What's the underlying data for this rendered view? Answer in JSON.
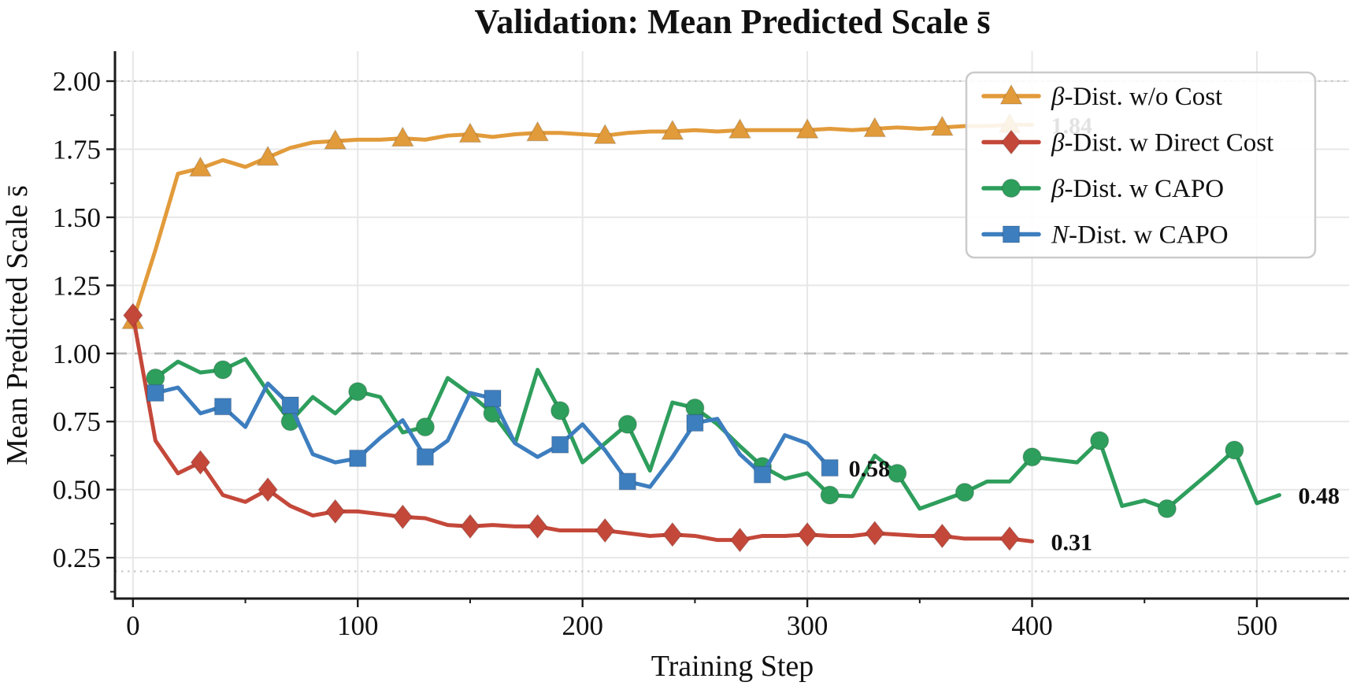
{
  "chart_data": {
    "type": "line",
    "title": "Validation: Mean Predicted Scale s̄",
    "xlabel": "Training Step",
    "ylabel": "Mean Predicted Scale s̄",
    "xlim": [
      -8,
      541
    ],
    "ylim": [
      0.1,
      2.11
    ],
    "xticks": [
      0,
      100,
      200,
      300,
      400,
      500
    ],
    "xminorticks": [
      50,
      150,
      250,
      350,
      450
    ],
    "yticks": [
      0.25,
      0.5,
      0.75,
      1.0,
      1.25,
      1.5,
      1.75,
      2.0
    ],
    "yminorticks": [
      0.125,
      0.375,
      0.625,
      0.875,
      1.125,
      1.375,
      1.625,
      1.875
    ],
    "grid": true,
    "grid_color": "#e7e7e7",
    "reference_lines": [
      {
        "y": 1.0,
        "style": "dashed",
        "color": "#b9b9b9"
      },
      {
        "y": 2.0,
        "style": "dotted",
        "color": "#c6c6c6"
      },
      {
        "y": 0.2,
        "style": "dotted",
        "color": "#c6c6c6"
      }
    ],
    "legend_position": "upper right",
    "series": [
      {
        "name": "β-Dist. w/o Cost",
        "slug": "beta-dist-wo-cost",
        "color": "#E29B3B",
        "marker": "triangle",
        "marker_interval": 30,
        "end_label": "1.84",
        "points": [
          [
            0,
            1.12
          ],
          [
            10,
            1.38
          ],
          [
            20,
            1.66
          ],
          [
            30,
            1.68
          ],
          [
            40,
            1.71
          ],
          [
            50,
            1.685
          ],
          [
            60,
            1.72
          ],
          [
            70,
            1.755
          ],
          [
            80,
            1.775
          ],
          [
            90,
            1.78
          ],
          [
            100,
            1.785
          ],
          [
            110,
            1.785
          ],
          [
            120,
            1.79
          ],
          [
            130,
            1.785
          ],
          [
            140,
            1.8
          ],
          [
            150,
            1.805
          ],
          [
            160,
            1.795
          ],
          [
            170,
            1.805
          ],
          [
            180,
            1.81
          ],
          [
            190,
            1.81
          ],
          [
            200,
            1.805
          ],
          [
            210,
            1.8
          ],
          [
            220,
            1.81
          ],
          [
            230,
            1.815
          ],
          [
            240,
            1.815
          ],
          [
            250,
            1.82
          ],
          [
            260,
            1.815
          ],
          [
            270,
            1.82
          ],
          [
            280,
            1.82
          ],
          [
            290,
            1.82
          ],
          [
            300,
            1.82
          ],
          [
            310,
            1.825
          ],
          [
            320,
            1.82
          ],
          [
            330,
            1.825
          ],
          [
            340,
            1.83
          ],
          [
            350,
            1.825
          ],
          [
            360,
            1.83
          ],
          [
            370,
            1.835
          ],
          [
            380,
            1.835
          ],
          [
            390,
            1.84
          ],
          [
            400,
            1.84
          ]
        ]
      },
      {
        "name": "β-Dist. w Direct Cost",
        "slug": "beta-dist-w-direct-cost",
        "color": "#C4483A",
        "marker": "diamond",
        "marker_interval": 30,
        "end_label": "0.31",
        "points": [
          [
            0,
            1.14
          ],
          [
            10,
            0.68
          ],
          [
            20,
            0.56
          ],
          [
            30,
            0.6
          ],
          [
            40,
            0.48
          ],
          [
            50,
            0.455
          ],
          [
            60,
            0.5
          ],
          [
            70,
            0.44
          ],
          [
            80,
            0.405
          ],
          [
            90,
            0.42
          ],
          [
            100,
            0.42
          ],
          [
            110,
            0.41
          ],
          [
            120,
            0.4
          ],
          [
            130,
            0.395
          ],
          [
            140,
            0.37
          ],
          [
            150,
            0.365
          ],
          [
            160,
            0.37
          ],
          [
            170,
            0.365
          ],
          [
            180,
            0.365
          ],
          [
            190,
            0.35
          ],
          [
            200,
            0.35
          ],
          [
            210,
            0.35
          ],
          [
            220,
            0.34
          ],
          [
            230,
            0.33
          ],
          [
            240,
            0.335
          ],
          [
            250,
            0.33
          ],
          [
            260,
            0.315
          ],
          [
            270,
            0.315
          ],
          [
            280,
            0.33
          ],
          [
            290,
            0.33
          ],
          [
            300,
            0.335
          ],
          [
            310,
            0.33
          ],
          [
            320,
            0.33
          ],
          [
            330,
            0.34
          ],
          [
            340,
            0.335
          ],
          [
            350,
            0.33
          ],
          [
            360,
            0.33
          ],
          [
            370,
            0.32
          ],
          [
            380,
            0.32
          ],
          [
            390,
            0.32
          ],
          [
            400,
            0.31
          ]
        ]
      },
      {
        "name": "β-Dist. w CAPO",
        "slug": "beta-dist-w-capo",
        "color": "#2E9E5C",
        "marker": "circle",
        "marker_interval": 30,
        "end_label": "0.48",
        "points": [
          [
            10,
            0.91
          ],
          [
            20,
            0.97
          ],
          [
            30,
            0.93
          ],
          [
            40,
            0.94
          ],
          [
            50,
            0.98
          ],
          [
            60,
            0.86
          ],
          [
            70,
            0.75
          ],
          [
            80,
            0.84
          ],
          [
            90,
            0.78
          ],
          [
            100,
            0.86
          ],
          [
            110,
            0.84
          ],
          [
            120,
            0.71
          ],
          [
            130,
            0.73
          ],
          [
            140,
            0.91
          ],
          [
            150,
            0.85
          ],
          [
            160,
            0.78
          ],
          [
            170,
            0.67
          ],
          [
            180,
            0.94
          ],
          [
            190,
            0.79
          ],
          [
            200,
            0.6
          ],
          [
            210,
            0.67
          ],
          [
            220,
            0.74
          ],
          [
            230,
            0.57
          ],
          [
            240,
            0.82
          ],
          [
            250,
            0.8
          ],
          [
            260,
            0.74
          ],
          [
            270,
            0.66
          ],
          [
            280,
            0.585
          ],
          [
            290,
            0.54
          ],
          [
            300,
            0.56
          ],
          [
            310,
            0.48
          ],
          [
            320,
            0.475
          ],
          [
            330,
            0.625
          ],
          [
            340,
            0.56
          ],
          [
            350,
            0.43
          ],
          [
            360,
            0.46
          ],
          [
            370,
            0.49
          ],
          [
            380,
            0.53
          ],
          [
            390,
            0.53
          ],
          [
            400,
            0.62
          ],
          [
            410,
            0.61
          ],
          [
            420,
            0.6
          ],
          [
            430,
            0.68
          ],
          [
            440,
            0.44
          ],
          [
            450,
            0.46
          ],
          [
            460,
            0.43
          ],
          [
            470,
            0.5
          ],
          [
            480,
            0.57
          ],
          [
            490,
            0.645
          ],
          [
            500,
            0.45
          ],
          [
            510,
            0.48
          ]
        ]
      },
      {
        "name": "N-Dist. w CAPO",
        "slug": "n-dist-w-capo",
        "color": "#3D7EBF",
        "marker": "square",
        "marker_interval": 30,
        "end_label": "0.58",
        "points": [
          [
            10,
            0.855
          ],
          [
            20,
            0.875
          ],
          [
            30,
            0.78
          ],
          [
            40,
            0.805
          ],
          [
            50,
            0.73
          ],
          [
            60,
            0.89
          ],
          [
            70,
            0.81
          ],
          [
            80,
            0.63
          ],
          [
            90,
            0.6
          ],
          [
            100,
            0.615
          ],
          [
            110,
            0.69
          ],
          [
            120,
            0.755
          ],
          [
            130,
            0.62
          ],
          [
            140,
            0.68
          ],
          [
            150,
            0.855
          ],
          [
            160,
            0.835
          ],
          [
            170,
            0.67
          ],
          [
            180,
            0.62
          ],
          [
            190,
            0.665
          ],
          [
            200,
            0.74
          ],
          [
            210,
            0.645
          ],
          [
            220,
            0.53
          ],
          [
            230,
            0.51
          ],
          [
            240,
            0.62
          ],
          [
            250,
            0.745
          ],
          [
            260,
            0.76
          ],
          [
            270,
            0.63
          ],
          [
            280,
            0.555
          ],
          [
            290,
            0.7
          ],
          [
            300,
            0.67
          ],
          [
            310,
            0.58
          ]
        ]
      }
    ]
  }
}
